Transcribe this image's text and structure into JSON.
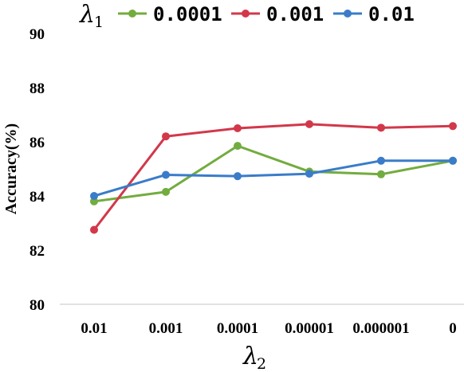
{
  "chart_data": {
    "type": "line",
    "xlabel_symbol": "λ",
    "xlabel_sub": "2",
    "ylabel": "Accuracy(%)",
    "legend_title_symbol": "λ",
    "legend_title_sub": "1",
    "legend_position": "top",
    "grid": false,
    "ylim": [
      80,
      90
    ],
    "yticks": [
      "80",
      "82",
      "84",
      "86",
      "88",
      "90"
    ],
    "categories": [
      "0.01",
      "0.001",
      "0.0001",
      "0.00001",
      "0.000001",
      "0"
    ],
    "series": [
      {
        "name": "0.0001",
        "color": "#72ac3e",
        "values": [
          83.8,
          84.15,
          85.85,
          84.9,
          84.8,
          85.3
        ]
      },
      {
        "name": "0.001",
        "color": "#d2384a",
        "values": [
          82.75,
          86.2,
          86.5,
          86.65,
          86.52,
          86.58
        ]
      },
      {
        "name": "0.01",
        "color": "#3a7cc9",
        "values": [
          84.0,
          84.78,
          84.73,
          84.82,
          85.3,
          85.3
        ]
      }
    ]
  }
}
